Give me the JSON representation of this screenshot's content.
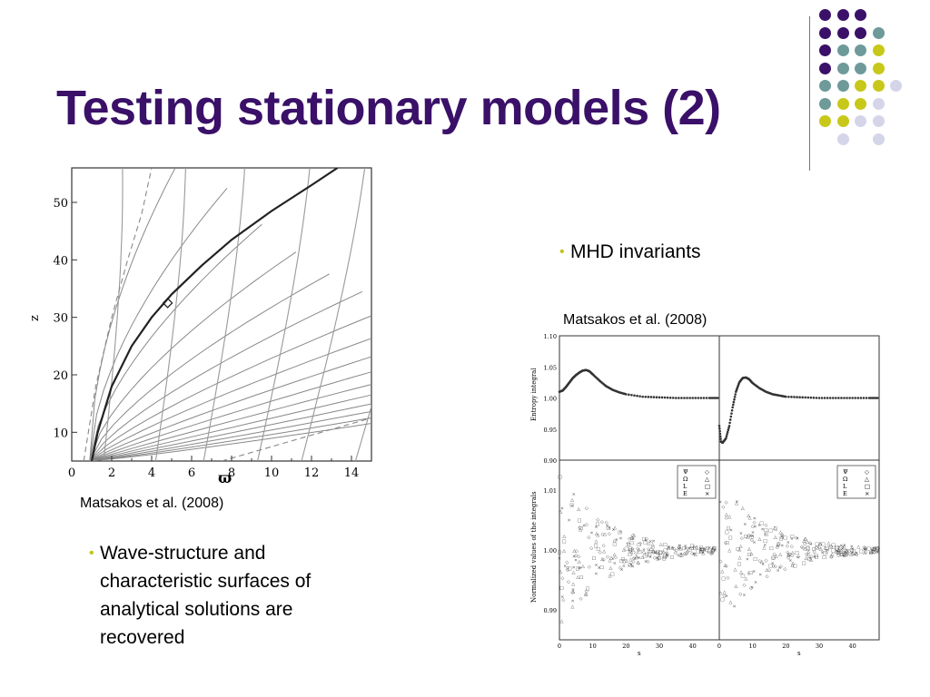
{
  "slide": {
    "title": "Testing stationary models (2)",
    "left_caption": "Matsakos et al. (2008)",
    "right_caption": "Matsakos et al. (2008)",
    "bullet_right": "MHD invariants",
    "bullet_left_lines": [
      "Wave-structure and",
      "characteristic surfaces of",
      "analytical solutions are",
      "recovered"
    ]
  },
  "decor": {
    "colors": {
      "purple": "#3a1068",
      "teal": "#6e9a9a",
      "yellow": "#c8c81a",
      "lavender": "#d5d5ea"
    },
    "dot_grid": [
      [
        "purple",
        "purple",
        "purple",
        "none"
      ],
      [
        "purple",
        "purple",
        "purple",
        "teal"
      ],
      [
        "purple",
        "teal",
        "teal",
        "yellow"
      ],
      [
        "purple",
        "teal",
        "teal",
        "yellow"
      ],
      [
        "teal",
        "teal",
        "yellow",
        "yellow",
        "lavender"
      ],
      [
        "teal",
        "yellow",
        "yellow",
        "lavender"
      ],
      [
        "yellow",
        "yellow",
        "lavender",
        "lavender"
      ],
      [
        "none",
        "lavender",
        "none",
        "lavender"
      ]
    ]
  },
  "chart_data": [
    {
      "type": "line",
      "title": "",
      "xlabel": "ϖ",
      "ylabel": "z",
      "xlim": [
        0,
        15
      ],
      "ylim": [
        5,
        56
      ],
      "xticks": [
        "0",
        "2",
        "4",
        "6",
        "8",
        "10",
        "12",
        "14"
      ],
      "yticks": [
        "10",
        "20",
        "30",
        "40",
        "50"
      ],
      "series": [
        {
          "role": "thick-field-line",
          "x": [
            1.0,
            1.3,
            2.0,
            3.0,
            4.0,
            5.0,
            6.5,
            8.0,
            10.0,
            12.0,
            13.3
          ],
          "y": [
            5,
            10,
            18,
            25,
            30,
            34,
            39,
            43.5,
            48.5,
            53,
            56
          ]
        },
        {
          "role": "dashed-line",
          "x": [
            0.6,
            1.2,
            2.0,
            2.8,
            3.5,
            4.0
          ],
          "y": [
            5,
            18,
            30,
            40,
            48,
            56
          ]
        },
        {
          "role": "dashed-line",
          "x": [
            7.5,
            10.0,
            12.5,
            15.0
          ],
          "y": [
            5,
            7.5,
            10,
            12.5
          ]
        }
      ],
      "marker": {
        "x": 4.8,
        "y": 32.5,
        "shape": "diamond"
      }
    },
    {
      "type": "scatter",
      "panels": 4,
      "top_ylabel": "Entropy integral",
      "bottom_ylabel": "Normalized values of the integrals",
      "xlabel": "s",
      "xlim": [
        0,
        48
      ],
      "xticks": [
        "0",
        "10",
        "20",
        "30",
        "40"
      ],
      "top_ylim": [
        0.9,
        1.1
      ],
      "top_yticks": [
        "1.10",
        "1.05",
        "1.00",
        "0.95",
        "0.90"
      ],
      "bottom_yticks": [
        "1.01",
        "1.00",
        "0.99"
      ],
      "legend": [
        {
          "symbol": "◇",
          "label": "Ψ"
        },
        {
          "symbol": "△",
          "label": "Ω"
        },
        {
          "symbol": "□",
          "label": "L"
        },
        {
          "symbol": "×",
          "label": "E"
        }
      ],
      "top_left_series": {
        "x": [
          0,
          1,
          2,
          3,
          4,
          5,
          6,
          7,
          8,
          9,
          10,
          12,
          14,
          16,
          18,
          20,
          25,
          30,
          35,
          40,
          45,
          48
        ],
        "y": [
          1.01,
          1.012,
          1.018,
          1.025,
          1.032,
          1.037,
          1.041,
          1.044,
          1.045,
          1.043,
          1.038,
          1.028,
          1.019,
          1.013,
          1.009,
          1.006,
          1.002,
          1.001,
          1.0,
          1.0,
          1.0,
          1.0
        ]
      },
      "top_right_series": {
        "x": [
          0,
          0.5,
          1,
          2,
          3,
          4,
          5,
          6,
          7,
          8,
          9,
          10,
          12,
          14,
          16,
          18,
          20,
          25,
          30,
          35,
          40,
          45,
          48
        ],
        "y": [
          0.955,
          0.93,
          0.928,
          0.935,
          0.955,
          0.985,
          1.01,
          1.025,
          1.032,
          1.033,
          1.03,
          1.024,
          1.016,
          1.01,
          1.006,
          1.004,
          1.002,
          1.001,
          1.0,
          1.0,
          1.0,
          1.0,
          1.0
        ]
      }
    }
  ]
}
